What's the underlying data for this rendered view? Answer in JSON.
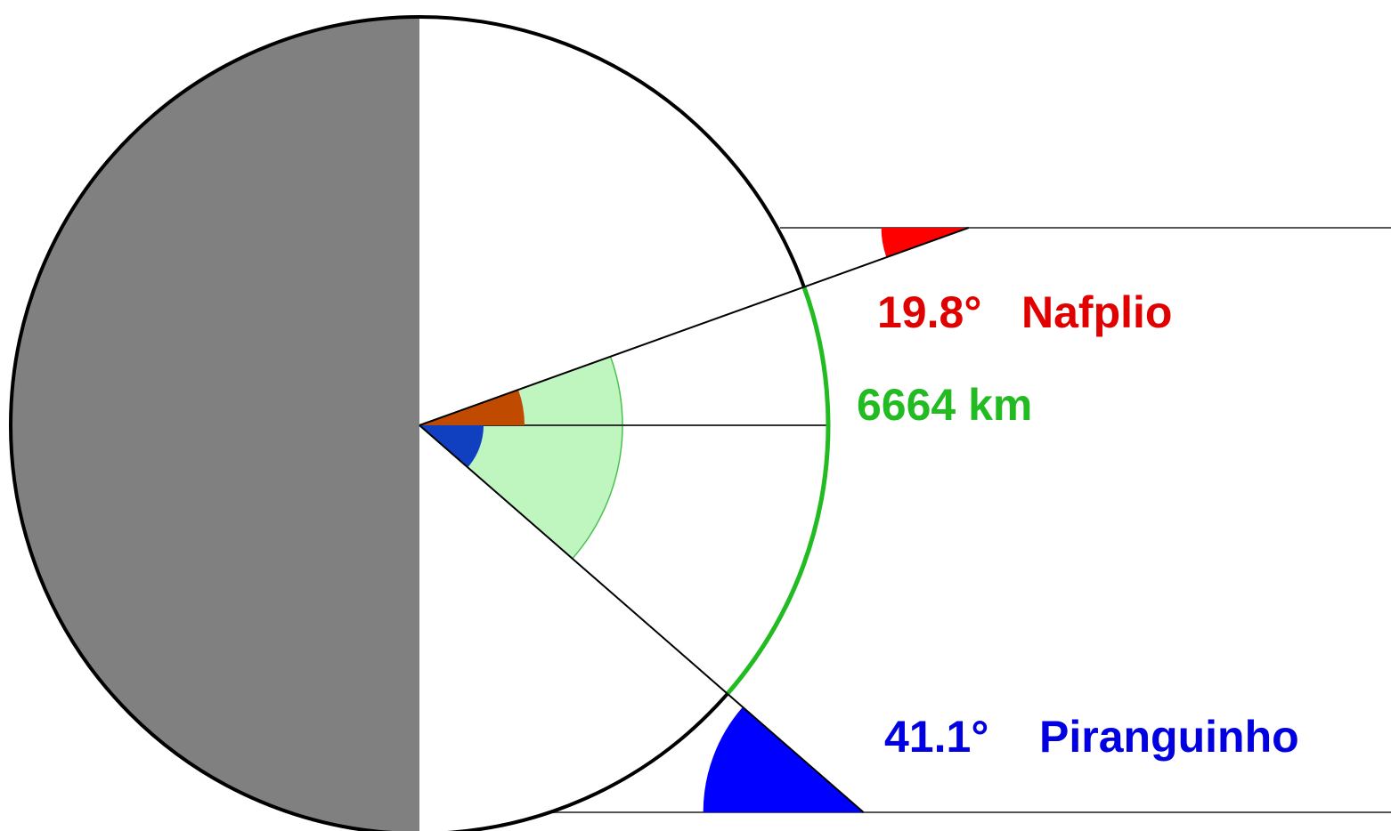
{
  "diagram": {
    "nafplio": {
      "angle_label": "19.8°",
      "name": "Nafplio",
      "latitude_deg": 19.8,
      "color": "#e00000"
    },
    "piranguinho": {
      "angle_label": "41.1°",
      "name": "Piranguinho",
      "latitude_deg": 41.1,
      "color": "#0000e0"
    },
    "arc_distance": {
      "label": "6664 km",
      "color": "#22bb22"
    },
    "colors": {
      "night_side": "#808080",
      "day_side": "#ffffff",
      "outline": "#000000",
      "sector_fill": "#bff5bf",
      "nafplio_center_angle": "#c04a00",
      "piranguinho_center_angle": "#1040c0"
    }
  }
}
